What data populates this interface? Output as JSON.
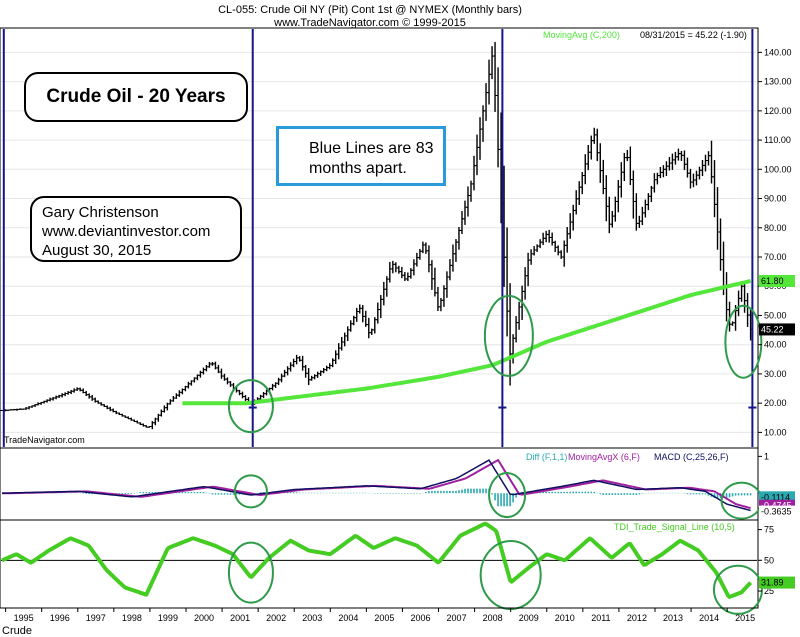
{
  "header": {
    "line1": "CL-055:  Crude Oil NY (Pit) Cont 1st @ NYMEX  (Monthly bars)",
    "line2": "www.TradeNavigator.com © 1999-2015"
  },
  "annotations": {
    "title": "Crude Oil - 20 Years",
    "note_line1": "Blue Lines are 83",
    "note_line2": "months apart.",
    "author_line1": "Gary Christenson",
    "author_line2": "www.deviantinvestor.com",
    "author_line3": "August 30, 2015"
  },
  "footer_label": "Crude",
  "watermark": "TradeNavigator.com",
  "colors": {
    "price_bars": "#000000",
    "moving_avg": "#55e63c",
    "blue_lines": "#15158c",
    "highlight_circles": "#2e9a4a",
    "macd_diff": "#2aaab0",
    "macd_signal": "#a020a0",
    "macd_line": "#101060",
    "tdi": "#44cc22",
    "note_border": "#2a9ad8"
  },
  "chart_data": [
    {
      "type": "bar",
      "name": "Crude Oil NY (Pit) Cont 1st @ NYMEX (Monthly bars)",
      "x_ticks": [
        "1995",
        "1996",
        "1997",
        "1998",
        "1999",
        "2000",
        "2001",
        "2002",
        "2003",
        "2004",
        "2005",
        "2006",
        "2007",
        "2008",
        "2009",
        "2010",
        "2011",
        "2012",
        "2013",
        "2014",
        "2015"
      ],
      "ylim": [
        5,
        148
      ],
      "y_ticks": [
        10,
        20,
        30,
        40,
        50,
        60,
        70,
        80,
        90,
        100,
        110,
        120,
        130,
        140
      ],
      "y_tick_labels": [
        "10.00",
        "20.00",
        "30.00",
        "40.00",
        "50.00",
        "60.00",
        "70.00",
        "80.00",
        "90.00",
        "100.00",
        "110.00",
        "120.00",
        "130.00",
        "140.00"
      ],
      "price_anchors": [
        {
          "date": 1994.9,
          "close": 17.5
        },
        {
          "date": 1995.5,
          "close": 18.0
        },
        {
          "date": 1996.8,
          "close": 24.0
        },
        {
          "date": 1997.0,
          "close": 25.0
        },
        {
          "date": 1997.5,
          "close": 20.5
        },
        {
          "date": 1998.0,
          "close": 17.0
        },
        {
          "date": 1998.95,
          "close": 11.5
        },
        {
          "date": 1999.5,
          "close": 20.0
        },
        {
          "date": 2000.7,
          "close": 34.0
        },
        {
          "date": 2001.0,
          "close": 29.0
        },
        {
          "date": 2001.8,
          "close": 19.5
        },
        {
          "date": 2002.5,
          "close": 27.0
        },
        {
          "date": 2003.1,
          "close": 36.0
        },
        {
          "date": 2003.4,
          "close": 28.0
        },
        {
          "date": 2004.0,
          "close": 33.0
        },
        {
          "date": 2004.8,
          "close": 53.0
        },
        {
          "date": 2005.1,
          "close": 43.0
        },
        {
          "date": 2005.7,
          "close": 68.0
        },
        {
          "date": 2006.1,
          "close": 62.0
        },
        {
          "date": 2006.6,
          "close": 75.0
        },
        {
          "date": 2007.0,
          "close": 52.0
        },
        {
          "date": 2007.9,
          "close": 95.0
        },
        {
          "date": 2008.5,
          "close": 140.0
        },
        {
          "date": 2008.97,
          "close": 36.0
        },
        {
          "date": 2009.5,
          "close": 70.0
        },
        {
          "date": 2010.0,
          "close": 78.0
        },
        {
          "date": 2010.4,
          "close": 70.0
        },
        {
          "date": 2011.3,
          "close": 113.0
        },
        {
          "date": 2011.75,
          "close": 80.0
        },
        {
          "date": 2012.2,
          "close": 107.0
        },
        {
          "date": 2012.5,
          "close": 80.0
        },
        {
          "date": 2013.0,
          "close": 97.0
        },
        {
          "date": 2013.7,
          "close": 106.0
        },
        {
          "date": 2014.0,
          "close": 95.0
        },
        {
          "date": 2014.5,
          "close": 105.0
        },
        {
          "date": 2014.95,
          "close": 54.0
        },
        {
          "date": 2015.1,
          "close": 45.0
        },
        {
          "date": 2015.4,
          "close": 60.0
        },
        {
          "date": 2015.65,
          "close": 45.22
        }
      ],
      "moving_average": {
        "label": "MovingAvg (C,200)",
        "value_label": "61.80",
        "points": [
          {
            "date": 1999.9,
            "value": 20.0
          },
          {
            "date": 2001.7,
            "value": 20.0
          },
          {
            "date": 2003.0,
            "value": 22.0
          },
          {
            "date": 2005.0,
            "value": 25.0
          },
          {
            "date": 2007.0,
            "value": 29.0
          },
          {
            "date": 2008.5,
            "value": 33.0
          },
          {
            "date": 2010.0,
            "value": 41.0
          },
          {
            "date": 2012.0,
            "value": 49.0
          },
          {
            "date": 2014.0,
            "value": 57.0
          },
          {
            "date": 2015.65,
            "value": 61.8
          }
        ]
      },
      "last_label": "08/31/2015 = 45.22 (-1.90)",
      "last_value": "45.22",
      "blue_lines": [
        1994.95,
        2001.85,
        2008.77,
        2015.7
      ],
      "circles": [
        {
          "date": 2001.8,
          "value": 19.0
        },
        {
          "date": 2008.95,
          "value": 43.0
        },
        {
          "date": 2015.45,
          "value": 41.0
        }
      ]
    },
    {
      "type": "line",
      "legend": [
        "Diff (F,1,1)",
        "MovingAvgX (6,F)",
        "MACD (C,25,26,F)"
      ],
      "ylim": [
        -0.7,
        1.2
      ],
      "y_ticks": [
        1
      ],
      "y_tick_labels": [
        "1"
      ],
      "value_labels": [
        "-0.1114",
        "-0.4745",
        "-0.3635"
      ],
      "macd_anchors": [
        {
          "date": 1994.9,
          "value": 0.0
        },
        {
          "date": 1997.0,
          "value": 0.05
        },
        {
          "date": 1998.5,
          "value": -0.1
        },
        {
          "date": 2000.5,
          "value": 0.18
        },
        {
          "date": 2001.8,
          "value": -0.05
        },
        {
          "date": 2003.0,
          "value": 0.1
        },
        {
          "date": 2005.0,
          "value": 0.2
        },
        {
          "date": 2006.5,
          "value": 0.12
        },
        {
          "date": 2007.5,
          "value": 0.4
        },
        {
          "date": 2008.4,
          "value": 0.9
        },
        {
          "date": 2009.0,
          "value": -0.05
        },
        {
          "date": 2010.5,
          "value": 0.2
        },
        {
          "date": 2011.3,
          "value": 0.35
        },
        {
          "date": 2012.5,
          "value": 0.1
        },
        {
          "date": 2013.7,
          "value": 0.15
        },
        {
          "date": 2014.4,
          "value": 0.05
        },
        {
          "date": 2015.0,
          "value": -0.3
        },
        {
          "date": 2015.65,
          "value": -0.47
        }
      ],
      "circles": [
        {
          "date": 2001.8,
          "value": 0.05
        },
        {
          "date": 2008.9,
          "value": -0.05
        },
        {
          "date": 2015.4,
          "value": -0.2
        }
      ]
    },
    {
      "type": "line",
      "legend": [
        "TDI_Trade_Signal_Line (10,5)"
      ],
      "ylim": [
        12,
        82
      ],
      "y_ticks": [
        25,
        50,
        75
      ],
      "y_tick_labels": [
        "25",
        "50",
        "75"
      ],
      "reference_line": 50,
      "value_label": "31.89",
      "tdi_anchors": [
        {
          "date": 1994.9,
          "value": 50
        },
        {
          "date": 1995.3,
          "value": 55
        },
        {
          "date": 1995.7,
          "value": 48
        },
        {
          "date": 1996.2,
          "value": 58
        },
        {
          "date": 1996.8,
          "value": 68
        },
        {
          "date": 1997.3,
          "value": 62
        },
        {
          "date": 1997.8,
          "value": 42
        },
        {
          "date": 1998.3,
          "value": 28
        },
        {
          "date": 1998.9,
          "value": 22
        },
        {
          "date": 1999.5,
          "value": 60
        },
        {
          "date": 2000.2,
          "value": 68
        },
        {
          "date": 2000.8,
          "value": 62
        },
        {
          "date": 2001.3,
          "value": 55
        },
        {
          "date": 2001.8,
          "value": 36
        },
        {
          "date": 2002.3,
          "value": 52
        },
        {
          "date": 2002.9,
          "value": 66
        },
        {
          "date": 2003.4,
          "value": 58
        },
        {
          "date": 2004.0,
          "value": 55
        },
        {
          "date": 2004.7,
          "value": 70
        },
        {
          "date": 2005.2,
          "value": 60
        },
        {
          "date": 2005.8,
          "value": 68
        },
        {
          "date": 2006.4,
          "value": 62
        },
        {
          "date": 2007.0,
          "value": 48
        },
        {
          "date": 2007.6,
          "value": 70
        },
        {
          "date": 2008.3,
          "value": 80
        },
        {
          "date": 2008.6,
          "value": 74
        },
        {
          "date": 2009.0,
          "value": 32
        },
        {
          "date": 2009.5,
          "value": 44
        },
        {
          "date": 2010.0,
          "value": 55
        },
        {
          "date": 2010.5,
          "value": 50
        },
        {
          "date": 2011.2,
          "value": 68
        },
        {
          "date": 2011.8,
          "value": 52
        },
        {
          "date": 2012.3,
          "value": 64
        },
        {
          "date": 2012.7,
          "value": 46
        },
        {
          "date": 2013.2,
          "value": 55
        },
        {
          "date": 2013.7,
          "value": 66
        },
        {
          "date": 2014.2,
          "value": 58
        },
        {
          "date": 2014.7,
          "value": 40
        },
        {
          "date": 2015.05,
          "value": 20
        },
        {
          "date": 2015.4,
          "value": 24
        },
        {
          "date": 2015.65,
          "value": 31.89
        }
      ],
      "circles": [
        {
          "date": 2001.8,
          "value": 40
        },
        {
          "date": 2009.0,
          "value": 38
        },
        {
          "date": 2015.3,
          "value": 26
        }
      ]
    }
  ]
}
